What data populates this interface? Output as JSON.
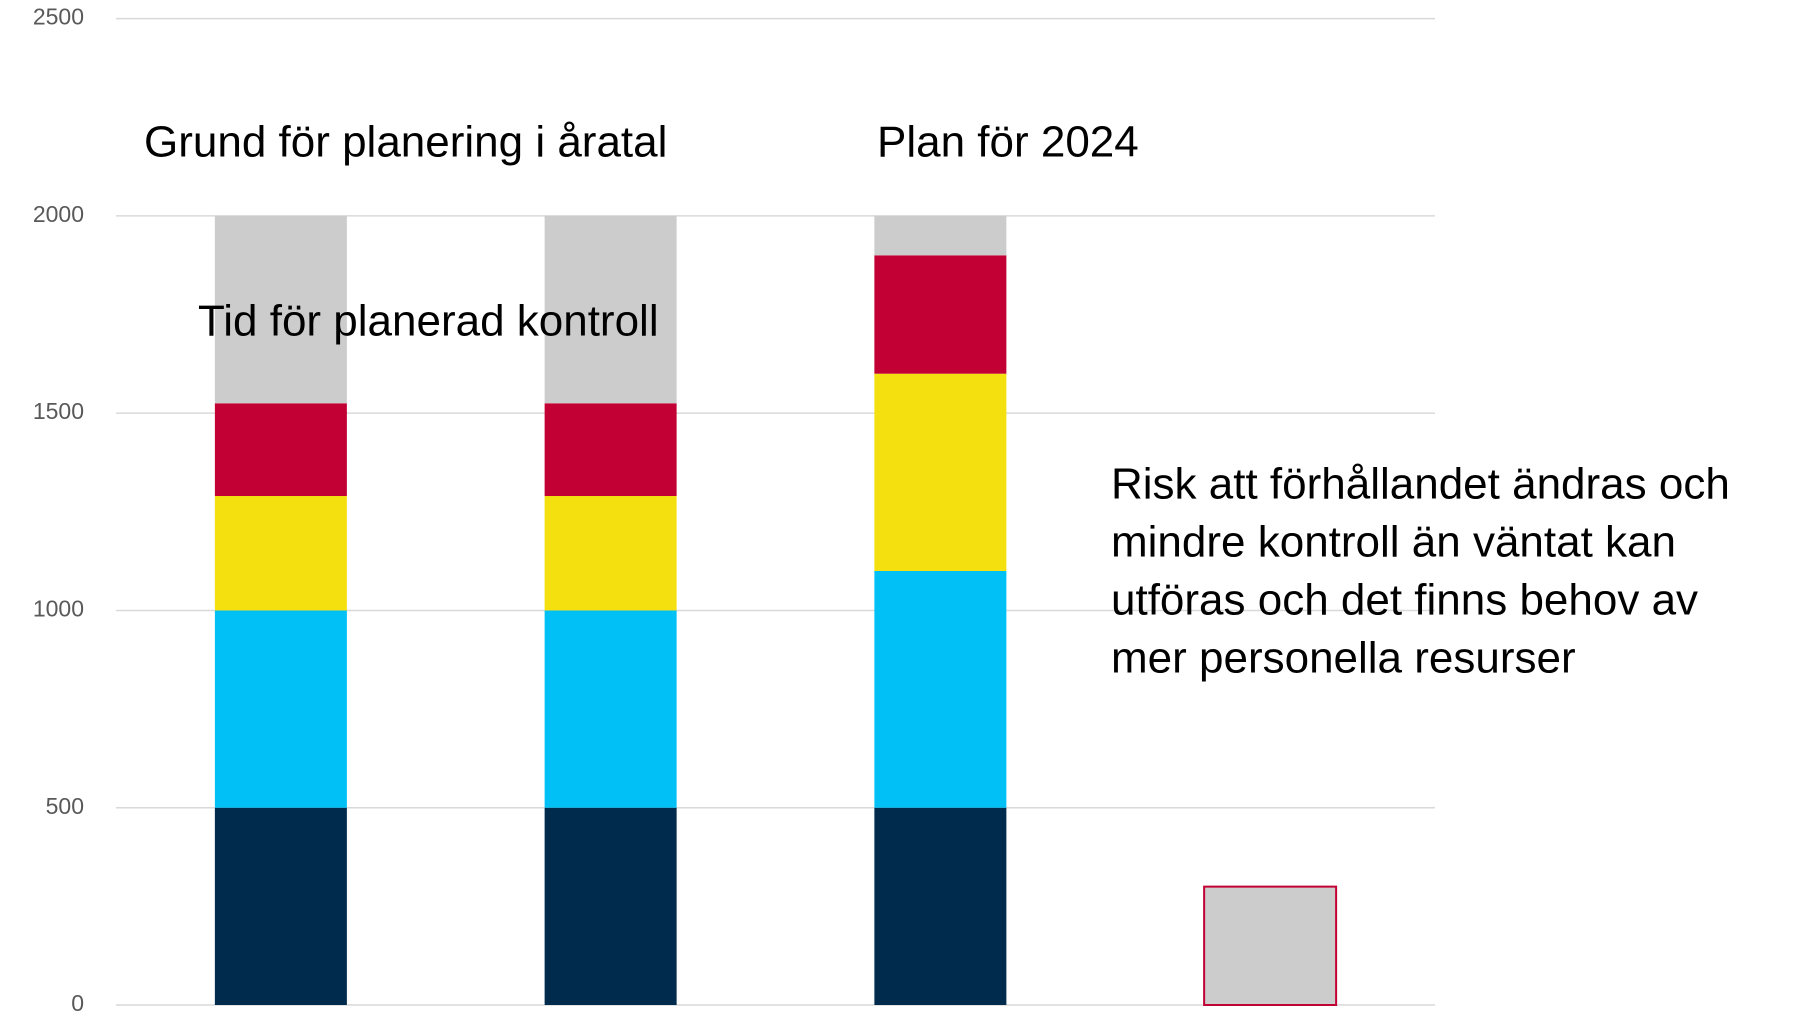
{
  "chart_data": {
    "type": "stacked_bar",
    "categories": [
      null,
      null,
      null,
      null
    ],
    "series": [
      {
        "color": "#002b4d",
        "values": [
          500,
          500,
          500,
          0
        ]
      },
      {
        "color": "#00c0f5",
        "values": [
          500,
          500,
          600,
          0
        ]
      },
      {
        "color": "#f5e00f",
        "values": [
          290,
          290,
          500,
          0
        ]
      },
      {
        "color": "#c30034",
        "values": [
          235,
          235,
          300,
          0
        ]
      },
      {
        "color": "#cccccc",
        "values": [
          475,
          475,
          100,
          300
        ],
        "edge_colors": [
          null,
          null,
          null,
          "#c30034"
        ]
      }
    ],
    "ylim": [
      0,
      2500
    ],
    "yticks": [
      0,
      500,
      1000,
      1500,
      2000,
      2500
    ],
    "grid": true,
    "annotations": [
      {
        "text": "Grund för planering i åratal"
      },
      {
        "text": "Plan för 2024"
      },
      {
        "text": "Tid för planerad kontroll"
      },
      {
        "lines": [
          "Risk att förhållandet ändras och",
          "mindre kontroll än väntat kan",
          "utföras och det finns behov av",
          "mer personella resurser"
        ]
      }
    ]
  }
}
